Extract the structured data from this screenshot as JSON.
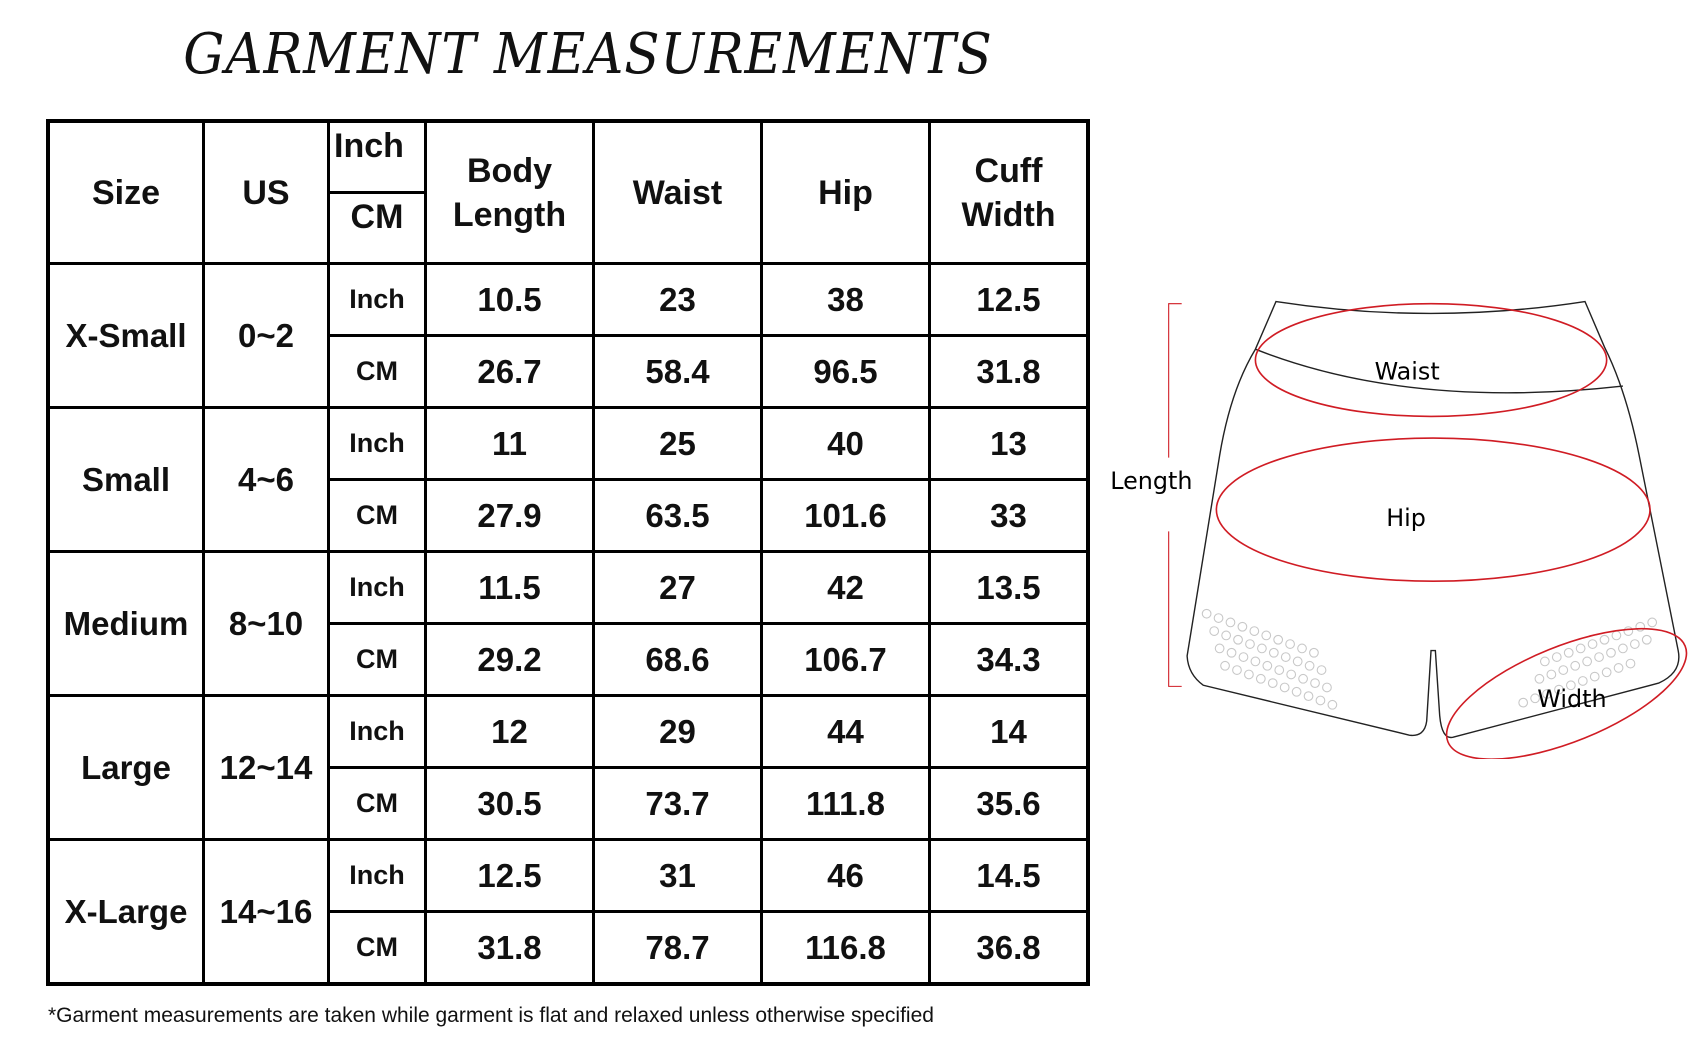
{
  "title": "GARMENT MEASUREMENTS",
  "table": {
    "headers": [
      "Size",
      "US",
      "Body Length",
      "Waist",
      "Hip",
      "Cuff Width"
    ],
    "unit_header": [
      "Inch",
      "CM"
    ],
    "rows": [
      {
        "size": "X-Small",
        "us": "0~2",
        "inch": [
          "10.5",
          "23",
          "38",
          "12.5"
        ],
        "cm": [
          "26.7",
          "58.4",
          "96.5",
          "31.8"
        ]
      },
      {
        "size": "Small",
        "us": "4~6",
        "inch": [
          "11",
          "25",
          "40",
          "13"
        ],
        "cm": [
          "27.9",
          "63.5",
          "101.6",
          "33"
        ]
      },
      {
        "size": "Medium",
        "us": "8~10",
        "inch": [
          "11.5",
          "27",
          "42",
          "13.5"
        ],
        "cm": [
          "29.2",
          "68.6",
          "106.7",
          "34.3"
        ]
      },
      {
        "size": "Large",
        "us": "12~14",
        "inch": [
          "12",
          "29",
          "44",
          "14"
        ],
        "cm": [
          "30.5",
          "73.7",
          "111.8",
          "35.6"
        ]
      },
      {
        "size": "X-Large",
        "us": "14~16",
        "inch": [
          "12.5",
          "31",
          "46",
          "14.5"
        ],
        "cm": [
          "31.8",
          "78.7",
          "116.8",
          "36.8"
        ]
      }
    ],
    "unit_labels": {
      "inch": "Inch",
      "cm": "CM"
    }
  },
  "footnote": "*Garment measurements are taken while garment is flat and relaxed unless otherwise specified",
  "diagram": {
    "labels": {
      "waist": "Waist",
      "hip": "Hip",
      "length": "Length",
      "width": "Width"
    },
    "colors": {
      "outline": "#222222",
      "measure": "#d01c24",
      "dots": "#c8c8c8"
    }
  }
}
